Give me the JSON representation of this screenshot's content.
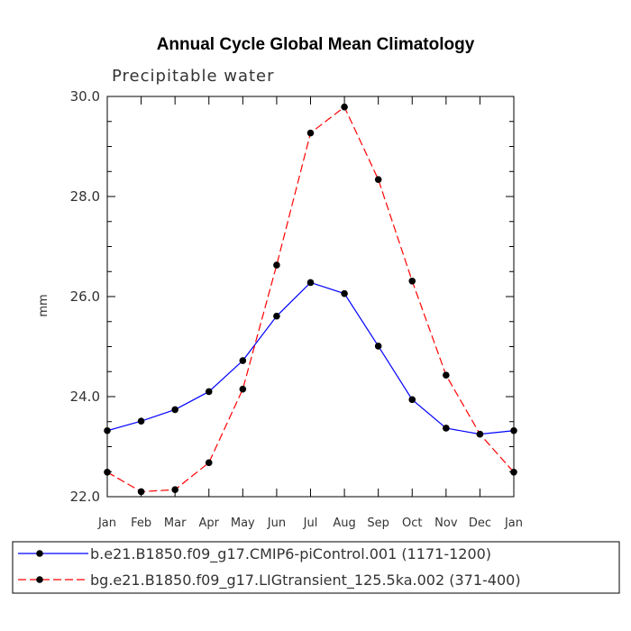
{
  "chart_data": {
    "type": "line",
    "title": "Annual Cycle Global Mean Climatology",
    "subtitle": "Precipitable water",
    "xlabel": "",
    "ylabel": "mm",
    "categories": [
      "Jan",
      "Feb",
      "Mar",
      "Apr",
      "May",
      "Jun",
      "Jul",
      "Aug",
      "Sep",
      "Oct",
      "Nov",
      "Dec",
      "Jan"
    ],
    "ylim": [
      22.0,
      30.0
    ],
    "yticks": [
      "22.0",
      "24.0",
      "26.0",
      "28.0",
      "30.0"
    ],
    "grid": false,
    "legend_position": "bottom",
    "series": [
      {
        "name": "b.e21.B1850.f09_g17.CMIP6-piControl.001 (1171-1200)",
        "color": "#0000ff",
        "dash": "solid",
        "marker": "dot",
        "values": [
          23.32,
          23.51,
          23.74,
          24.1,
          24.72,
          25.61,
          26.28,
          26.06,
          25.01,
          23.94,
          23.37,
          23.25,
          23.32
        ]
      },
      {
        "name": "bg.e21.B1850.f09_g17.LIGtransient_125.5ka.002 (371-400)",
        "color": "#ff0000",
        "dash": "dashed",
        "marker": "dot",
        "values": [
          22.49,
          22.1,
          22.14,
          22.68,
          24.15,
          26.63,
          29.27,
          29.79,
          28.34,
          26.31,
          24.43,
          23.25,
          22.49
        ]
      }
    ]
  }
}
